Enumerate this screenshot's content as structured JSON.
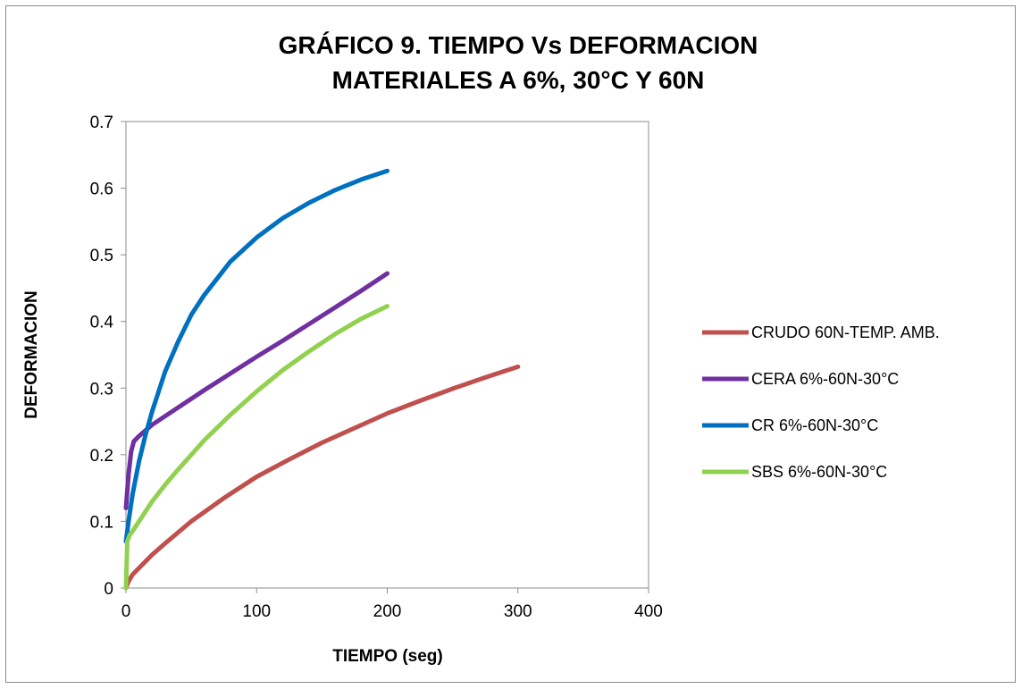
{
  "chart_data": {
    "type": "line",
    "title_line1": "GRÁFICO 9. TIEMPO Vs DEFORMACION",
    "title_line2": "MATERIALES A 6%, 30°C Y 60N",
    "xlabel": "TIEMPO (seg)",
    "ylabel": "DEFORMACION",
    "xlim": [
      0,
      400
    ],
    "ylim": [
      0,
      0.7
    ],
    "xticks": [
      "0",
      "100",
      "200",
      "300",
      "400"
    ],
    "yticks": [
      "0",
      "0.1",
      "0.2",
      "0.3",
      "0.4",
      "0.5",
      "0.6",
      "0.7"
    ],
    "grid": false,
    "legend_position": "right",
    "series": [
      {
        "name": "CRUDO 60N-TEMP. AMB.",
        "color": "#C0504D",
        "x": [
          0,
          2,
          5,
          10,
          20,
          30,
          50,
          75,
          100,
          125,
          150,
          175,
          200,
          225,
          250,
          275,
          300
        ],
        "y": [
          0,
          0.01,
          0.02,
          0.03,
          0.05,
          0.067,
          0.1,
          0.135,
          0.167,
          0.193,
          0.218,
          0.24,
          0.262,
          0.281,
          0.299,
          0.316,
          0.332
        ]
      },
      {
        "name": "CERA 6%-60N-30°C",
        "color": "#7030A0",
        "x": [
          0,
          2,
          4,
          6,
          10,
          20,
          40,
          60,
          80,
          100,
          120,
          140,
          160,
          180,
          200
        ],
        "y": [
          0.12,
          0.17,
          0.205,
          0.22,
          0.228,
          0.245,
          0.271,
          0.297,
          0.322,
          0.347,
          0.371,
          0.396,
          0.421,
          0.446,
          0.472
        ]
      },
      {
        "name": "CR 6%-60N-30°C",
        "color": "#0070C0",
        "x": [
          0,
          2,
          5,
          10,
          15,
          20,
          30,
          40,
          50,
          60,
          80,
          100,
          120,
          140,
          160,
          180,
          200
        ],
        "y": [
          0.07,
          0.1,
          0.14,
          0.19,
          0.23,
          0.265,
          0.325,
          0.37,
          0.41,
          0.44,
          0.49,
          0.526,
          0.555,
          0.578,
          0.597,
          0.613,
          0.626
        ]
      },
      {
        "name": "SBS 6%-60N-30°C",
        "color": "#92D050",
        "x": [
          0,
          1,
          3,
          5,
          10,
          20,
          30,
          40,
          60,
          80,
          100,
          120,
          140,
          160,
          180,
          200
        ],
        "y": [
          0,
          0.07,
          0.08,
          0.085,
          0.1,
          0.13,
          0.155,
          0.178,
          0.222,
          0.26,
          0.295,
          0.327,
          0.355,
          0.381,
          0.404,
          0.423
        ]
      }
    ]
  }
}
